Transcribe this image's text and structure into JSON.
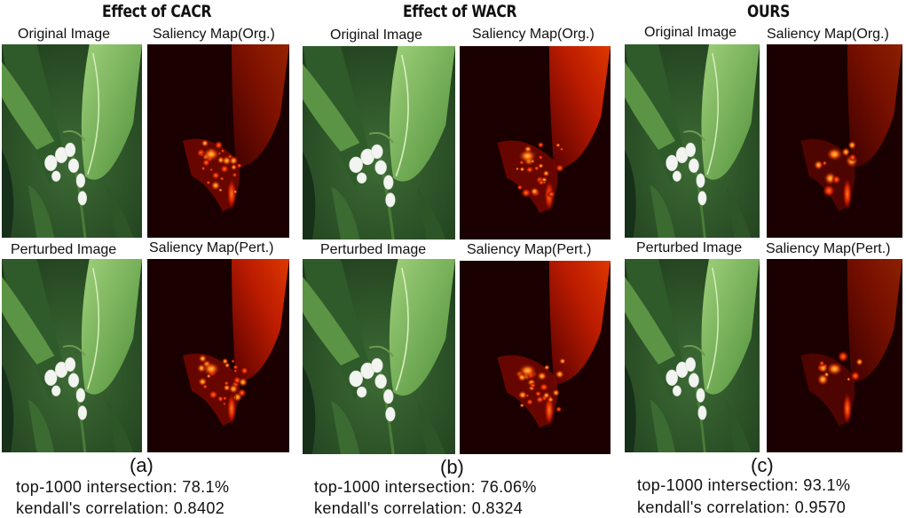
{
  "panels": [
    {
      "title": "Effect of CACR",
      "label": "(a)",
      "captions": {
        "original": "Original Image",
        "saliency_org": "Saliency Map(Org.)",
        "perturbed": "Perturbed Image",
        "saliency_pert": "Saliency Map(Pert.)"
      },
      "intersection": "top-1000 intersection: 78.1%",
      "kendall": "kendall's correlation: 0.8402"
    },
    {
      "title": "Effect of  WACR",
      "label": "(b)",
      "captions": {
        "original": "Original Image",
        "saliency_org": "Saliency Map(Org.)",
        "perturbed": "Perturbed Image",
        "saliency_pert": "Saliency Map(Pert.)"
      },
      "intersection": "top-1000 intersection: 76.06%",
      "kendall": "kendall's correlation: 0.8324"
    },
    {
      "title": "OURS",
      "label": "(c)",
      "captions": {
        "original": "Original Image",
        "saliency_org": "Saliency Map(Org.)",
        "perturbed": "Perturbed Image",
        "saliency_pert": "Saliency Map(Pert.)"
      },
      "intersection": "top-1000 intersection: 93.1%",
      "kendall": "kendall's correlation: 0.9570"
    }
  ]
}
